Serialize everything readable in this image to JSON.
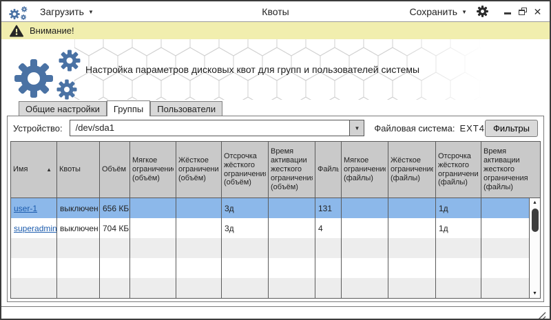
{
  "titlebar": {
    "load": "Загрузить",
    "title": "Квоты",
    "save": "Сохранить"
  },
  "banner": {
    "text": "Внимание!"
  },
  "hero": {
    "description": "Настройка параметров дисковых квот для групп и пользователей системы"
  },
  "tabs": [
    {
      "label": "Общие настройки",
      "active": false
    },
    {
      "label": "Группы",
      "active": true
    },
    {
      "label": "Пользователи",
      "active": false
    }
  ],
  "toolbar": {
    "device_label": "Устройство:",
    "device_value": "/dev/sda1",
    "filesystem_label": "Файловая система:",
    "filesystem_value": "EXT4",
    "filters_button": "Фильтры"
  },
  "table": {
    "columns": [
      "Имя",
      "Квоты",
      "Объём",
      "Мягкое ограничение (объём)",
      "Жёсткое ограничение (объём)",
      "Отсрочка жёсткого ограничения (объём)",
      "Время активации жесткого ограничения (объём)",
      "Файлы",
      "Мягкое ограничение (файлы)",
      "Жёсткое ограничение (файлы)",
      "Отсрочка жёсткого ограничения (файлы)",
      "Время активации жесткого ограничения (файлы)"
    ],
    "sort": {
      "column": "Имя",
      "direction": "asc"
    },
    "rows": [
      {
        "selected": true,
        "cells": [
          "user-1",
          "выключен",
          "656 КБ",
          "",
          "",
          "3д",
          "",
          "131",
          "",
          "",
          "1д",
          ""
        ]
      },
      {
        "selected": false,
        "cells": [
          "superadmin",
          "выключен",
          "704 КБ",
          "",
          "",
          "3д",
          "",
          "4",
          "",
          "",
          "1д",
          ""
        ]
      }
    ]
  },
  "icons": {
    "app": "gears",
    "load_chevron": "▼",
    "save_chevron": "▼",
    "combo_chevron": "▼",
    "settings": "gear",
    "minimize": "—",
    "maximize": "restore-squares",
    "close": "✕",
    "warning": "triangle-exclamation",
    "sort_asc": "▲",
    "scroll_up": "▲",
    "scroll_down": "▼",
    "resize_grip": "diagonal-lines"
  },
  "colors": {
    "accent_blue": "#4a72a4",
    "selection_blue": "#8cb8ea",
    "banner_yellow": "#f1eeae",
    "link_blue": "#1b5bad",
    "header_gray": "#c9c9c9"
  }
}
